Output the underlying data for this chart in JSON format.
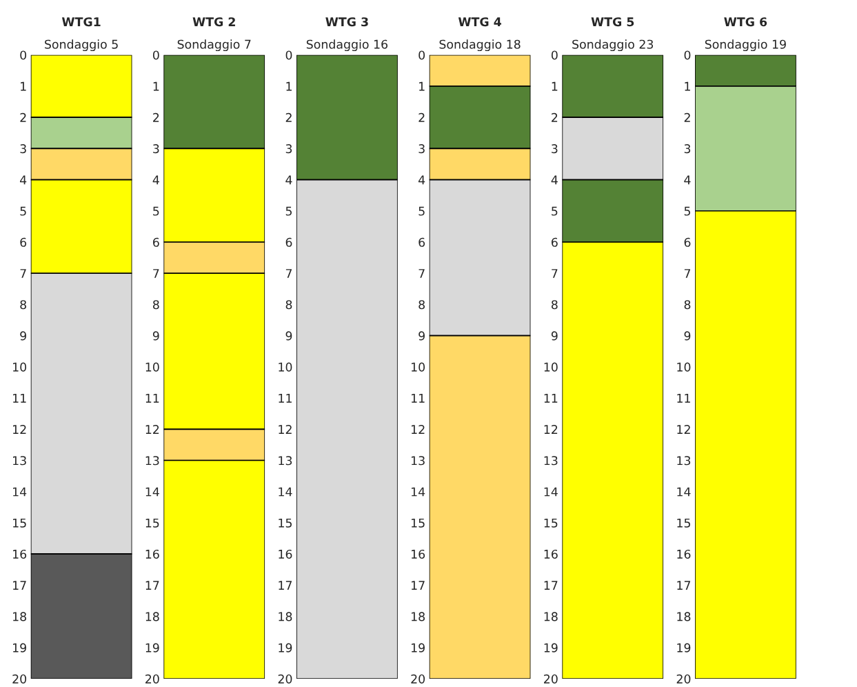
{
  "chart_data": [
    {
      "type": "bar",
      "stacked": true,
      "title": "WTG1",
      "categories": [
        "Sondaggio 5"
      ],
      "ylim": [
        20,
        0
      ],
      "yticks": [
        0,
        1,
        2,
        3,
        4,
        5,
        6,
        7,
        8,
        9,
        10,
        11,
        12,
        13,
        14,
        15,
        16,
        17,
        18,
        19,
        20
      ],
      "series": [
        {
          "color": "#ffff00",
          "values": [
            2
          ]
        },
        {
          "color": "#a9d18e",
          "values": [
            1
          ]
        },
        {
          "color": "#ffd966",
          "values": [
            1
          ]
        },
        {
          "color": "#ffff00",
          "values": [
            3
          ]
        },
        {
          "color": "#d9d9d9",
          "values": [
            9
          ]
        },
        {
          "color": "#595959",
          "values": [
            4
          ]
        }
      ]
    },
    {
      "type": "bar",
      "stacked": true,
      "title": "WTG 2",
      "categories": [
        "Sondaggio 7"
      ],
      "ylim": [
        20,
        0
      ],
      "yticks": [
        0,
        1,
        2,
        3,
        4,
        5,
        6,
        7,
        8,
        9,
        10,
        11,
        12,
        13,
        14,
        15,
        16,
        17,
        18,
        19,
        20
      ],
      "series": [
        {
          "color": "#548235",
          "values": [
            3
          ]
        },
        {
          "color": "#ffff00",
          "values": [
            3
          ]
        },
        {
          "color": "#ffd966",
          "values": [
            1
          ]
        },
        {
          "color": "#ffff00",
          "values": [
            5
          ]
        },
        {
          "color": "#ffd966",
          "values": [
            1
          ]
        },
        {
          "color": "#ffff00",
          "values": [
            7
          ]
        }
      ]
    },
    {
      "type": "bar",
      "stacked": true,
      "title": "WTG 3",
      "categories": [
        "Sondaggio 16"
      ],
      "ylim": [
        20,
        0
      ],
      "yticks": [
        0,
        1,
        2,
        3,
        4,
        5,
        6,
        7,
        8,
        9,
        10,
        11,
        12,
        13,
        14,
        15,
        16,
        17,
        18,
        19,
        20
      ],
      "series": [
        {
          "color": "#548235",
          "values": [
            4
          ]
        },
        {
          "color": "#d9d9d9",
          "values": [
            16
          ]
        }
      ]
    },
    {
      "type": "bar",
      "stacked": true,
      "title": "WTG 4",
      "categories": [
        "Sondaggio 18"
      ],
      "ylim": [
        20,
        0
      ],
      "yticks": [
        0,
        1,
        2,
        3,
        4,
        5,
        6,
        7,
        8,
        9,
        10,
        11,
        12,
        13,
        14,
        15,
        16,
        17,
        18,
        19,
        20
      ],
      "series": [
        {
          "color": "#ffd966",
          "values": [
            1
          ]
        },
        {
          "color": "#548235",
          "values": [
            2
          ]
        },
        {
          "color": "#ffd966",
          "values": [
            1
          ]
        },
        {
          "color": "#d9d9d9",
          "values": [
            5
          ]
        },
        {
          "color": "#ffd966",
          "values": [
            11
          ]
        }
      ]
    },
    {
      "type": "bar",
      "stacked": true,
      "title": "WTG 5",
      "categories": [
        "Sondaggio 23"
      ],
      "ylim": [
        20,
        0
      ],
      "yticks": [
        0,
        1,
        2,
        3,
        4,
        5,
        6,
        7,
        8,
        9,
        10,
        11,
        12,
        13,
        14,
        15,
        16,
        17,
        18,
        19,
        20
      ],
      "series": [
        {
          "color": "#548235",
          "values": [
            2
          ]
        },
        {
          "color": "#d9d9d9",
          "values": [
            2
          ]
        },
        {
          "color": "#548235",
          "values": [
            2
          ]
        },
        {
          "color": "#ffff00",
          "values": [
            14
          ]
        }
      ]
    },
    {
      "type": "bar",
      "stacked": true,
      "title": "WTG 6",
      "categories": [
        "Sondaggio 19"
      ],
      "ylim": [
        20,
        0
      ],
      "yticks": [
        0,
        1,
        2,
        3,
        4,
        5,
        6,
        7,
        8,
        9,
        10,
        11,
        12,
        13,
        14,
        15,
        16,
        17,
        18,
        19,
        20
      ],
      "series": [
        {
          "color": "#548235",
          "values": [
            1
          ]
        },
        {
          "color": "#a9d18e",
          "values": [
            4
          ]
        },
        {
          "color": "#ffff00",
          "values": [
            15
          ]
        }
      ]
    }
  ]
}
